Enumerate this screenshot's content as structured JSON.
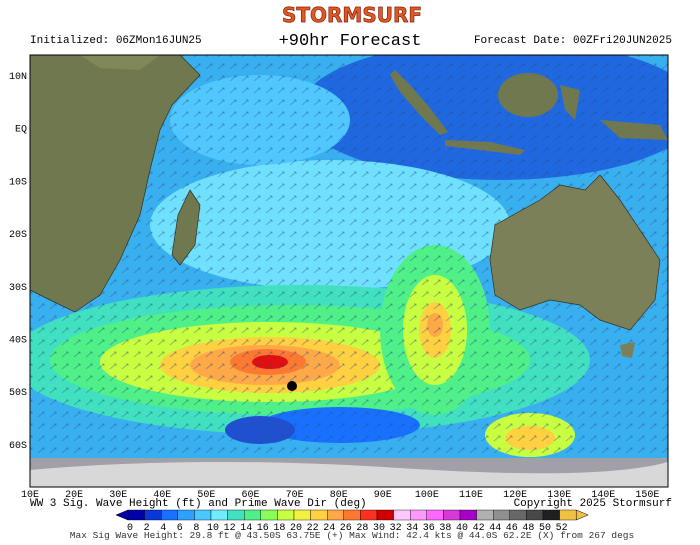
{
  "header": {
    "logo": "STORMSURF",
    "initialized": "Initialized: 06ZMon16JUN25",
    "title": "+90hr Forecast",
    "forecast_date": "Forecast Date: 00ZFri20JUN2025"
  },
  "map": {
    "lat_labels": [
      "10N",
      "EQ",
      "10S",
      "20S",
      "30S",
      "40S",
      "50S",
      "60S"
    ],
    "lon_labels": [
      "10E",
      "20E",
      "30E",
      "40E",
      "50E",
      "60E",
      "70E",
      "80E",
      "90E",
      "100E",
      "110E",
      "120E",
      "130E",
      "140E",
      "150E"
    ]
  },
  "footer": {
    "caption": "WW 3 Sig. Wave Height (ft) and Prime Wave Dir (deg)",
    "copyright": "Copyright 2025 Stormsurf",
    "scale": {
      "labels": [
        0,
        2,
        4,
        6,
        8,
        10,
        12,
        14,
        16,
        18,
        20,
        22,
        24,
        26,
        28,
        30,
        32,
        34,
        36,
        38,
        40,
        42,
        44,
        46,
        48,
        50,
        52
      ],
      "colors": [
        "#0000a8",
        "#0838d8",
        "#1870ff",
        "#30a0ff",
        "#48c8ff",
        "#70ecff",
        "#40e0c0",
        "#50f088",
        "#88ff58",
        "#c8ff40",
        "#f4f040",
        "#ffd040",
        "#ffa848",
        "#ff7830",
        "#ff3020",
        "#d00000",
        "#ffc8ff",
        "#ff98ff",
        "#ff68ff",
        "#d838d8",
        "#a800c8",
        "#b0b0b0",
        "#909090",
        "#686868",
        "#484848",
        "#202020",
        "#f0c040"
      ]
    },
    "stats": "Max Sig Wave Height: 29.8 ft @ 43.50S 63.75E (+)  Max Wind: 42.4 kts @ 44.0S 62.2E (X) from 267 degs"
  }
}
